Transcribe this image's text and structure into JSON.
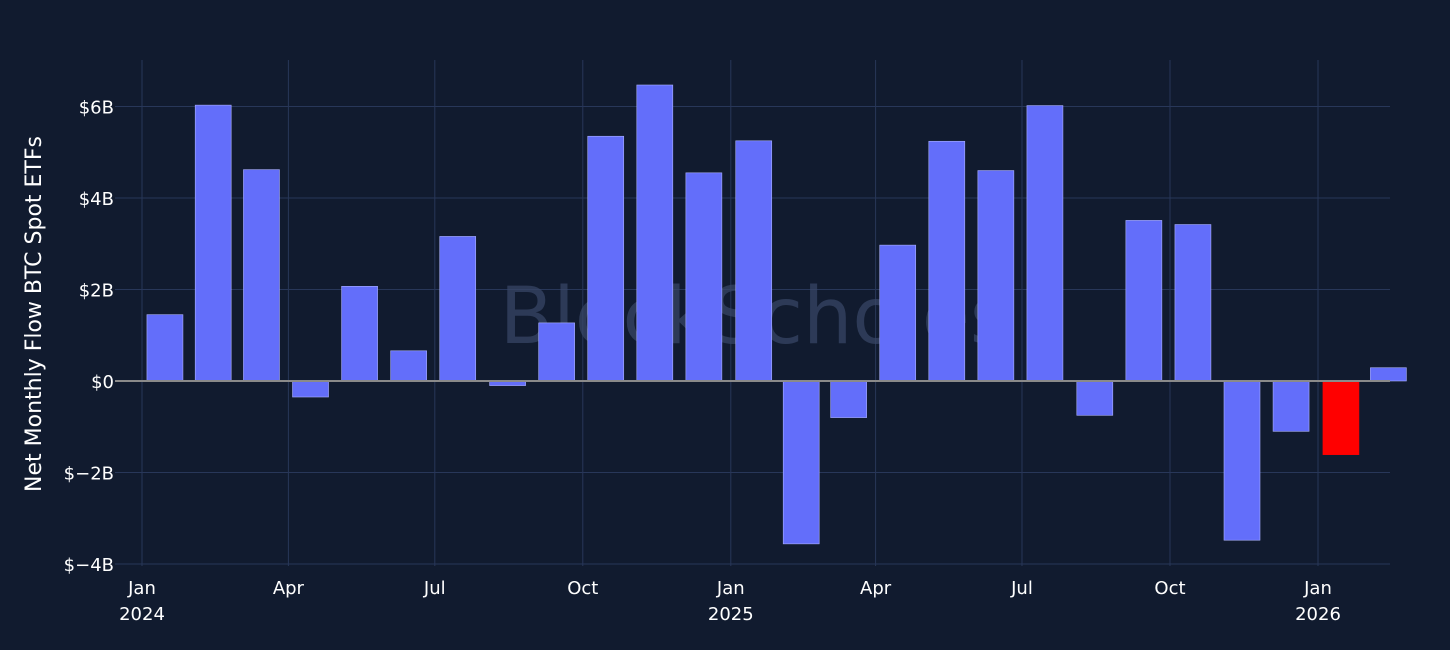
{
  "chart_data": {
    "type": "bar",
    "ylabel": "Net Monthly Flow BTC Spot ETFs",
    "ylim": [
      -4,
      7
    ],
    "yticks": [
      {
        "value": 6,
        "label": "$6B"
      },
      {
        "value": 4,
        "label": "$4B"
      },
      {
        "value": 2,
        "label": "$2B"
      },
      {
        "value": 0,
        "label": "$0"
      },
      {
        "value": -2,
        "label": "$−2B"
      },
      {
        "value": -4,
        "label": "$−4B"
      }
    ],
    "xticks": [
      {
        "date": "2024-01-01",
        "label": "Jan",
        "sublabel": "2024"
      },
      {
        "date": "2024-04-01",
        "label": "Apr",
        "sublabel": ""
      },
      {
        "date": "2024-07-01",
        "label": "Jul",
        "sublabel": ""
      },
      {
        "date": "2024-10-01",
        "label": "Oct",
        "sublabel": ""
      },
      {
        "date": "2025-01-01",
        "label": "Jan",
        "sublabel": "2025"
      },
      {
        "date": "2025-04-01",
        "label": "Apr",
        "sublabel": ""
      },
      {
        "date": "2025-07-01",
        "label": "Jul",
        "sublabel": ""
      },
      {
        "date": "2025-10-01",
        "label": "Oct",
        "sublabel": ""
      },
      {
        "date": "2026-01-01",
        "label": "Jan",
        "sublabel": "2026"
      }
    ],
    "bars": [
      {
        "date": "2024-01",
        "value": 1.45
      },
      {
        "date": "2024-02",
        "value": 6.03
      },
      {
        "date": "2024-03",
        "value": 4.62
      },
      {
        "date": "2024-04",
        "value": -0.35
      },
      {
        "date": "2024-05",
        "value": 2.07
      },
      {
        "date": "2024-06",
        "value": 0.66
      },
      {
        "date": "2024-07",
        "value": 3.16
      },
      {
        "date": "2024-08",
        "value": -0.1
      },
      {
        "date": "2024-09",
        "value": 1.27
      },
      {
        "date": "2024-10",
        "value": 5.35
      },
      {
        "date": "2024-11",
        "value": 6.47
      },
      {
        "date": "2024-12",
        "value": 4.55
      },
      {
        "date": "2025-01",
        "value": 5.25
      },
      {
        "date": "2025-02",
        "value": -3.56
      },
      {
        "date": "2025-03",
        "value": -0.8
      },
      {
        "date": "2025-04",
        "value": 2.97
      },
      {
        "date": "2025-05",
        "value": 5.24
      },
      {
        "date": "2025-06",
        "value": 4.6
      },
      {
        "date": "2025-07",
        "value": 6.02
      },
      {
        "date": "2025-08",
        "value": -0.75
      },
      {
        "date": "2025-09",
        "value": 3.51
      },
      {
        "date": "2025-10",
        "value": 3.42
      },
      {
        "date": "2025-11",
        "value": -3.48
      },
      {
        "date": "2025-12",
        "value": -1.1
      },
      {
        "date": "2026-01",
        "value": -1.61,
        "highlight": true
      },
      {
        "date": "2026-02",
        "value": 0.29
      }
    ],
    "grid": true,
    "legend": "none"
  },
  "colors": {
    "background": "#111b2f",
    "grid": "#283759",
    "zero_line": "#8a8a8a",
    "bar": "#636efa",
    "bar_highlight": "#ff0000",
    "bar_outline": "#aab0ff"
  },
  "watermark": "BlockScholes"
}
